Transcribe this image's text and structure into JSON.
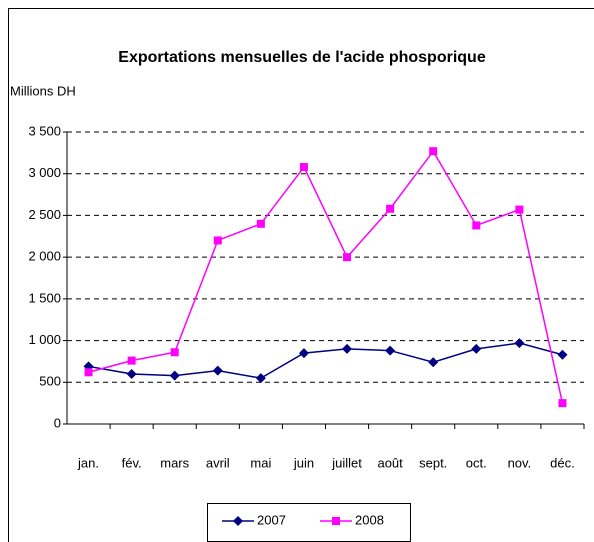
{
  "chart_data": {
    "type": "line",
    "title": "Exportations mensuelles de l'acide phosporique",
    "y_label": "Millions DH",
    "categories": [
      "jan.",
      "fév.",
      "mars",
      "avril",
      "mai",
      "juin",
      "juillet",
      "août",
      "sept.",
      "oct.",
      "nov.",
      "déc."
    ],
    "series": [
      {
        "name": "2007",
        "color": "#000080",
        "marker": "diamond",
        "values": [
          690,
          600,
          580,
          640,
          550,
          850,
          900,
          880,
          740,
          900,
          970,
          830
        ]
      },
      {
        "name": "2008",
        "color": "#ff00ff",
        "marker": "square",
        "values": [
          620,
          760,
          860,
          2200,
          2400,
          3080,
          2000,
          2580,
          3270,
          2380,
          2570,
          250
        ]
      }
    ],
    "ylim": [
      0,
      3500
    ],
    "yticks": [
      0,
      500,
      {
        "value": 1000,
        "label": "1 000"
      },
      {
        "value": 1500,
        "label": "1 500"
      },
      {
        "value": 2000,
        "label": "2 000"
      },
      {
        "value": 2500,
        "label": "2 500"
      },
      {
        "value": 3000,
        "label": "3 000"
      },
      {
        "value": 3500,
        "label": "3 500"
      }
    ],
    "grid": true,
    "legend": "bottom"
  }
}
